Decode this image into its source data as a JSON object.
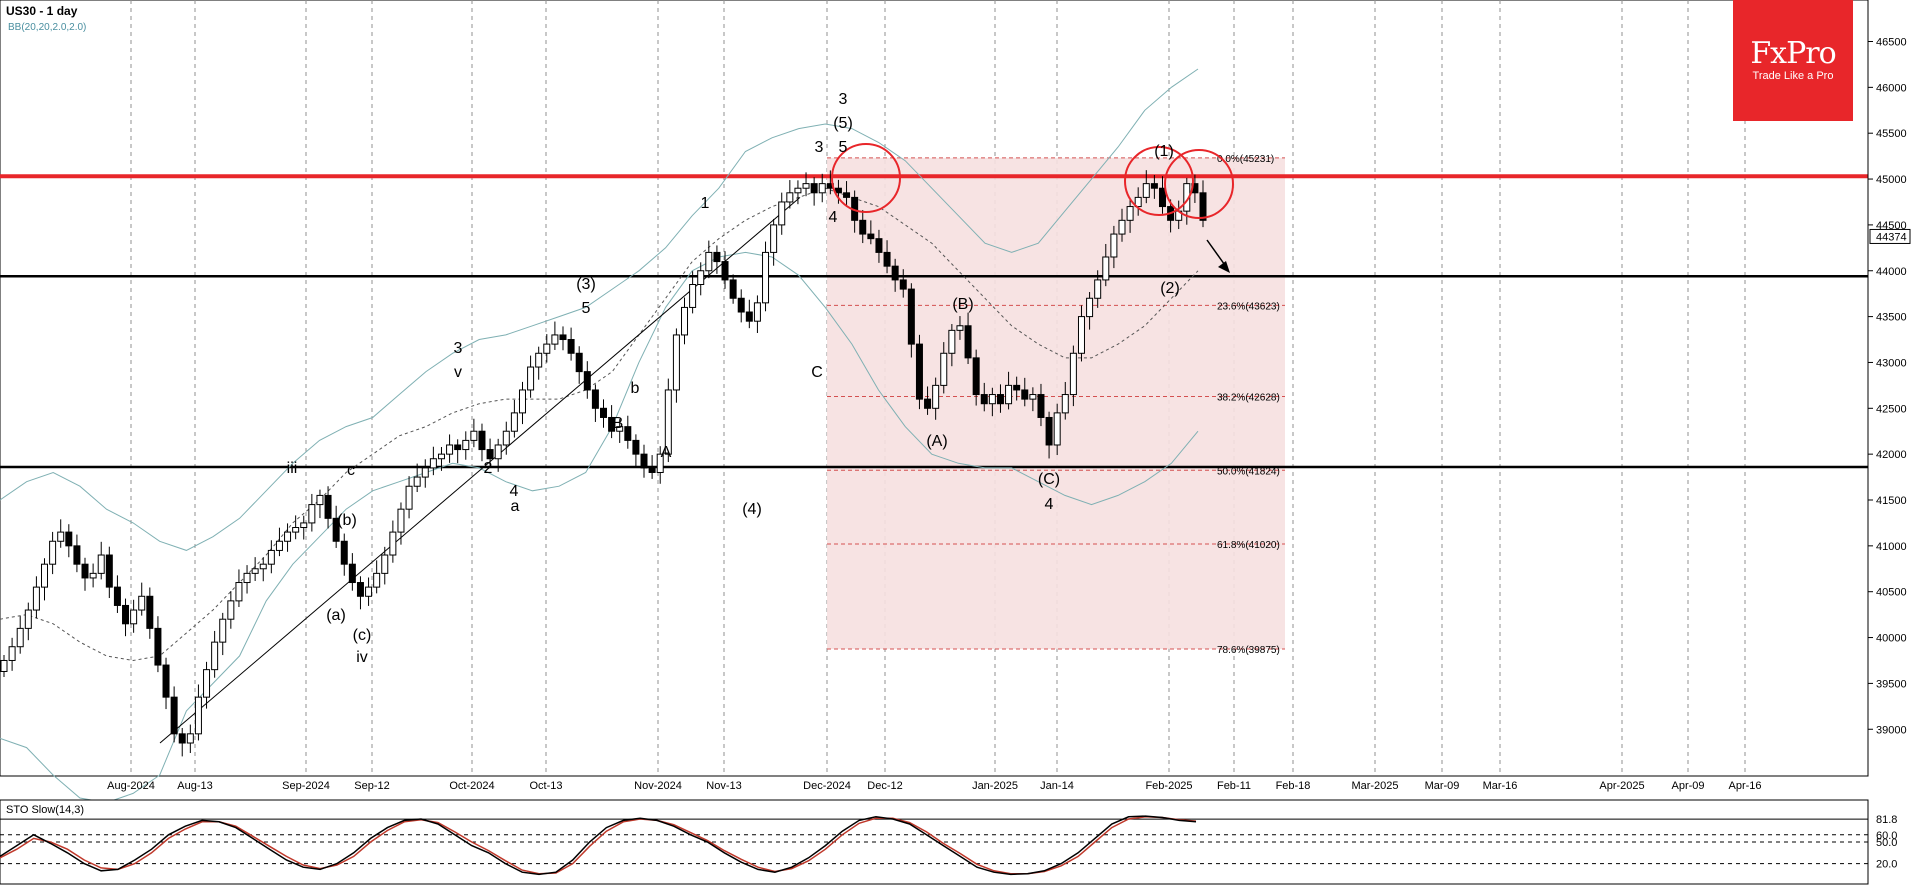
{
  "header": {
    "title": "US30 - 1 day",
    "indicator": "BB(20,20,2.0,2.0)"
  },
  "logo": {
    "brand": "FxPro",
    "tagline": "Trade Like a Pro"
  },
  "colors": {
    "resistance": "#e8262a",
    "support": "#000000",
    "bollinger": "#7fb0b3",
    "fib_zone": "#f6e0e0",
    "fib_line": "#d45050"
  },
  "chart_data": {
    "type": "candlestick",
    "price_axis": {
      "ticks": [
        46500,
        46000,
        45500,
        45000,
        44500,
        44000,
        43500,
        43000,
        42500,
        42000,
        41500,
        41000,
        40500,
        40000,
        39500,
        39000
      ],
      "current_price": "44374"
    },
    "date_axis": {
      "labels": [
        "Aug-2024",
        "Aug-13",
        "Sep-2024",
        "Sep-12",
        "Oct-2024",
        "Oct-13",
        "Nov-2024",
        "Nov-13",
        "Dec-2024",
        "Dec-12",
        "Jan-2025",
        "Jan-14",
        "Feb-2025",
        "Feb-11",
        "Feb-18",
        "Mar-2025",
        "Mar-09",
        "Mar-16",
        "Apr-2025",
        "Apr-09",
        "Apr-16"
      ]
    },
    "levels": {
      "resistance": 45030,
      "support_upper": 43940,
      "support_lower": 41860
    },
    "fibonacci": [
      {
        "ratio": "0.0%",
        "value": "45231"
      },
      {
        "ratio": "23.6%",
        "value": "43623"
      },
      {
        "ratio": "38.2%",
        "value": "42628"
      },
      {
        "ratio": "50.0%",
        "value": "41824"
      },
      {
        "ratio": "61.8%",
        "value": "41020"
      },
      {
        "ratio": "78.6%",
        "value": "39875"
      }
    ],
    "wave_labels": [
      "3",
      "(5)",
      "3",
      "5",
      "4",
      "1",
      "(3)",
      "5",
      "3",
      "v",
      "b",
      "B",
      "A",
      "C",
      "(4)",
      "2",
      "a",
      "c",
      "4",
      "iii",
      "(b)",
      "(a)",
      "(c)",
      "iv",
      "(B)",
      "(A)",
      "(C)",
      "4",
      "(1)",
      "(2)"
    ],
    "closes": [
      39750,
      39900,
      40100,
      40300,
      40550,
      40800,
      41050,
      41150,
      41000,
      40800,
      40650,
      40700,
      40900,
      40550,
      40350,
      40150,
      40300,
      40450,
      40100,
      39700,
      39350,
      38950,
      38850,
      38950,
      39350,
      39650,
      39950,
      40200,
      40400,
      40600,
      40700,
      40750,
      40800,
      40950,
      41050,
      41150,
      41200,
      41250,
      41450,
      41550,
      41300,
      41050,
      40800,
      40600,
      40450,
      40550,
      40700,
      40900,
      41150,
      41400,
      41650,
      41750,
      41850,
      41950,
      42000,
      42100,
      42050,
      42150,
      42250,
      42050,
      41950,
      42100,
      42250,
      42450,
      42700,
      42950,
      43100,
      43200,
      43300,
      43250,
      43100,
      42900,
      42700,
      42500,
      42400,
      42250,
      42300,
      42150,
      42000,
      41850,
      41800,
      42000,
      42700,
      43300,
      43600,
      43850,
      44000,
      44200,
      44100,
      43900,
      43700,
      43550,
      43450,
      43650,
      44200,
      44500,
      44750,
      44850,
      44900,
      44950,
      44850,
      44950,
      44900,
      44850,
      44800,
      44550,
      44400,
      44350,
      44200,
      44050,
      43900,
      43800,
      43200,
      42600,
      42500,
      42750,
      43100,
      43350,
      43400,
      43050,
      42650,
      42550,
      42650,
      42550,
      42750,
      42700,
      42600,
      42650,
      42400,
      42100,
      42450,
      42650,
      43100,
      43500,
      43700,
      43900,
      44150,
      44400,
      44550,
      44700,
      44800,
      44950,
      44900,
      44700,
      44550,
      44650,
      44950,
      44850,
      44550
    ],
    "bollinger": {
      "upper": [
        41500,
        41700,
        41800,
        41650,
        41400,
        41250,
        41050,
        40950,
        41100,
        41300,
        41600,
        41900,
        42150,
        42300,
        42400,
        42650,
        42900,
        43100,
        43250,
        43300,
        43400,
        43500,
        43600,
        43800,
        44000,
        44250,
        44600,
        44900,
        45300,
        45450,
        45550,
        45600,
        45550,
        45400,
        45200,
        44900,
        44600,
        44300,
        44200,
        44300,
        44650,
        45000,
        45350,
        45750,
        46000,
        46200
      ],
      "middle": [
        40200,
        40250,
        40150,
        39950,
        39800,
        39750,
        39800,
        40050,
        40300,
        40600,
        40900,
        41250,
        41500,
        41800,
        42000,
        42200,
        42300,
        42450,
        42550,
        42600,
        42600,
        42600,
        42700,
        42900,
        43300,
        43700,
        44100,
        44350,
        44550,
        44700,
        44800,
        44900,
        44800,
        44700,
        44500,
        44300,
        44000,
        43700,
        43400,
        43200,
        43050,
        43050,
        43200,
        43400,
        43700,
        44000
      ],
      "lower": [
        38900,
        38800,
        38500,
        38250,
        38200,
        38300,
        38500,
        39200,
        39500,
        39800,
        40400,
        40800,
        41100,
        41400,
        41600,
        41700,
        41800,
        41900,
        41850,
        41700,
        41600,
        41650,
        41800,
        42300,
        43000,
        43600,
        44000,
        44150,
        44200,
        44150,
        43950,
        43600,
        43200,
        42700,
        42300,
        42000,
        41900,
        41850,
        41850,
        41700,
        41550,
        41450,
        41550,
        41700,
        41900,
        42250
      ]
    },
    "stochastic": {
      "title": "STO Slow(14,3)",
      "levels": [
        "81.8",
        "60.0",
        "50.0",
        "20.0"
      ],
      "k": [
        30,
        45,
        60,
        48,
        35,
        20,
        10,
        12,
        25,
        40,
        60,
        72,
        80,
        78,
        70,
        55,
        40,
        25,
        15,
        12,
        20,
        35,
        55,
        70,
        80,
        82,
        75,
        60,
        45,
        35,
        20,
        8,
        5,
        8,
        25,
        50,
        70,
        80,
        83,
        80,
        72,
        60,
        50,
        35,
        22,
        12,
        8,
        15,
        28,
        45,
        65,
        80,
        85,
        82,
        75,
        60,
        45,
        30,
        15,
        8,
        5,
        6,
        10,
        20,
        35,
        55,
        75,
        85,
        86,
        84,
        80,
        78
      ],
      "d": [
        28,
        40,
        55,
        50,
        40,
        25,
        14,
        12,
        20,
        35,
        55,
        68,
        78,
        78,
        72,
        58,
        44,
        30,
        18,
        13,
        18,
        30,
        50,
        66,
        78,
        81,
        77,
        64,
        50,
        38,
        24,
        11,
        6,
        7,
        20,
        44,
        65,
        78,
        82,
        80,
        74,
        63,
        52,
        38,
        26,
        15,
        9,
        13,
        24,
        40,
        60,
        76,
        83,
        83,
        77,
        64,
        48,
        34,
        19,
        10,
        6,
        6,
        9,
        17,
        30,
        50,
        70,
        82,
        85,
        84,
        81,
        79
      ]
    }
  }
}
